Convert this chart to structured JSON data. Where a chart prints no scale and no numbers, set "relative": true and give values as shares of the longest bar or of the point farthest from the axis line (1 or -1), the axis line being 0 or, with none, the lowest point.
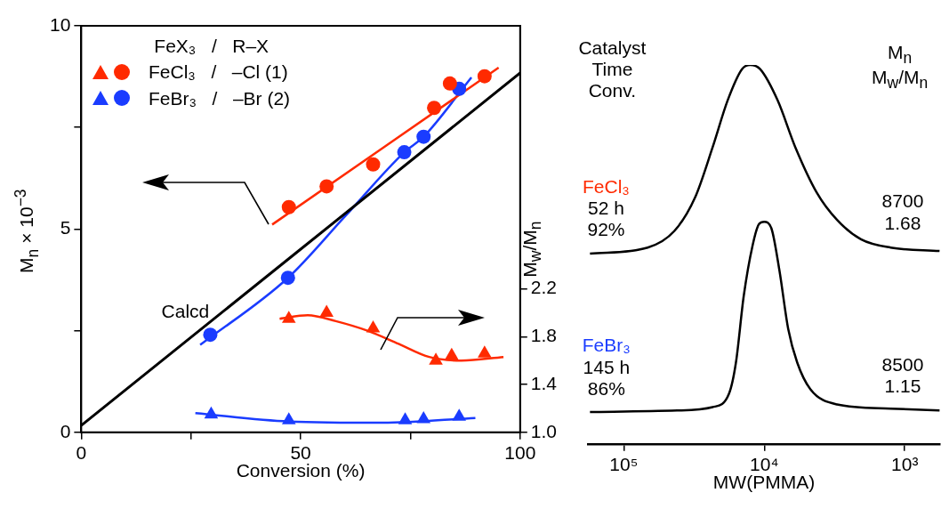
{
  "chart_data": [
    {
      "type": "scatter",
      "xlabel": "Conversion (%)",
      "ylabel": "M$_{n}$ × 10$^{−3}$",
      "y2label": "M$_{w}$/M$_{n}$",
      "legend_title": "FeX₃   /   R–X",
      "legend": "top left",
      "xlim": [
        0,
        100
      ],
      "xticks": [
        0,
        {
          "value": 25,
          "label": null
        },
        50,
        {
          "value": 75,
          "label": null
        },
        100
      ],
      "ylim": [
        0,
        10
      ],
      "yticks": [
        0,
        {
          "value": 2.5,
          "label": null
        },
        5,
        {
          "value": 7.5,
          "label": null
        },
        10
      ],
      "y2lim": [
        1.0,
        4.4
      ],
      "y2ticks": [
        {
          "value": 1,
          "label": "1.0"
        },
        1.4,
        1.8,
        2.2
      ],
      "series": [
        {
          "name": "FeCl₃   /   –Cl (1)",
          "color": "#ff2a00",
          "marker": "circle",
          "x": [
            47.3,
            55.9,
            66.5,
            80.4,
            84.0,
            91.9
          ],
          "values": [
            5.54,
            6.05,
            6.59,
            7.98,
            8.58,
            8.76
          ]
        },
        {
          "name": "FeBr₃   /   –Br (2)",
          "color": "#1a3cff",
          "marker": "circle",
          "x": [
            29.4,
            47.1,
            73.6,
            78.0,
            86.1
          ],
          "values": [
            2.4,
            3.8,
            6.89,
            7.27,
            8.45
          ]
        },
        {
          "color": "#ff2a00",
          "marker": "triangle",
          "axis": "y2",
          "x": [
            47.3,
            55.9,
            66.5,
            80.8,
            84.4,
            91.9
          ],
          "values": [
            1.95,
            2.0,
            1.87,
            1.6,
            1.64,
            1.66
          ]
        },
        {
          "color": "#1a3cff",
          "marker": "triangle",
          "axis": "y2",
          "x": [
            29.6,
            47.3,
            73.8,
            78.0,
            86.1
          ],
          "values": [
            1.15,
            1.1,
            1.1,
            1.11,
            1.13
          ]
        },
        {
          "name": "Calcd",
          "type": "line",
          "color": "#000000",
          "x": [
            0,
            100
          ],
          "values": [
            0.17,
            8.84
          ]
        },
        {
          "type": "line",
          "color": "#ff2a00",
          "x": [
            43.5,
            95.1
          ],
          "values": [
            5.11,
            8.97
          ]
        },
        {
          "type": "line",
          "color": "#1a3cff",
          "x": [
            27.1,
            47.1,
            60,
            73.6,
            78.0,
            88.9
          ],
          "values": [
            2.15,
            3.8,
            5.3,
            6.89,
            7.27,
            8.73
          ]
        },
        {
          "type": "line",
          "color": "#ff2a00",
          "axis": "y2",
          "x": [
            45.2,
            51.6,
            58,
            65.2,
            72.3,
            79.3,
            86.6,
            96.2
          ],
          "values": [
            1.95,
            1.98,
            1.93,
            1.85,
            1.74,
            1.63,
            1.6,
            1.63
          ]
        },
        {
          "type": "line",
          "color": "#1a3cff",
          "axis": "y2",
          "x": [
            26,
            47.3,
            68.7,
            89.8
          ],
          "values": [
            1.16,
            1.09,
            1.08,
            1.12
          ]
        }
      ]
    },
    {
      "type": "line",
      "relative": true,
      "log": "x",
      "xlabel": "MW(PMMA)",
      "xlim": [
        180000,
        560
      ],
      "xticks": [
        {
          "value": 100000,
          "label": "10⁵"
        },
        {
          "value": 10000,
          "label": "10⁴"
        },
        {
          "value": 1000,
          "label": "10³"
        }
      ],
      "annotations": [
        "Catalyst\nTime\nConv.",
        "M$_{n}$\nM$_{w}$/M$_{n}$",
        "FeCl₃\n52 h\n92%",
        "8700\n1.68",
        "FeBr₃\n145 h\n86%",
        "8500\n1.15"
      ],
      "series": [
        {
          "color": "#000000",
          "x": [
            174000,
            67600,
            43600,
            31100,
            23300,
            18200,
            14400,
            12600,
            10700,
            8040,
            6010,
            4240,
            3030,
            2050,
            1260,
            565
          ],
          "values": [
            0.502,
            0.518,
            0.562,
            0.65,
            0.783,
            0.907,
            0.989,
            1.0,
            0.989,
            0.907,
            0.783,
            0.664,
            0.591,
            0.54,
            0.518,
            0.509
          ]
        },
        {
          "color": "#000000",
          "x": [
            174000,
            41700,
            23300,
            17800,
            15900,
            14000,
            12100,
            10900,
            10000,
            8900,
            7800,
            6750,
            5830,
            4690,
            3030,
            1260,
            565
          ],
          "values": [
            0.084,
            0.088,
            0.097,
            0.133,
            0.215,
            0.39,
            0.524,
            0.58,
            0.586,
            0.569,
            0.458,
            0.303,
            0.215,
            0.144,
            0.104,
            0.093,
            0.088
          ]
        }
      ]
    }
  ]
}
